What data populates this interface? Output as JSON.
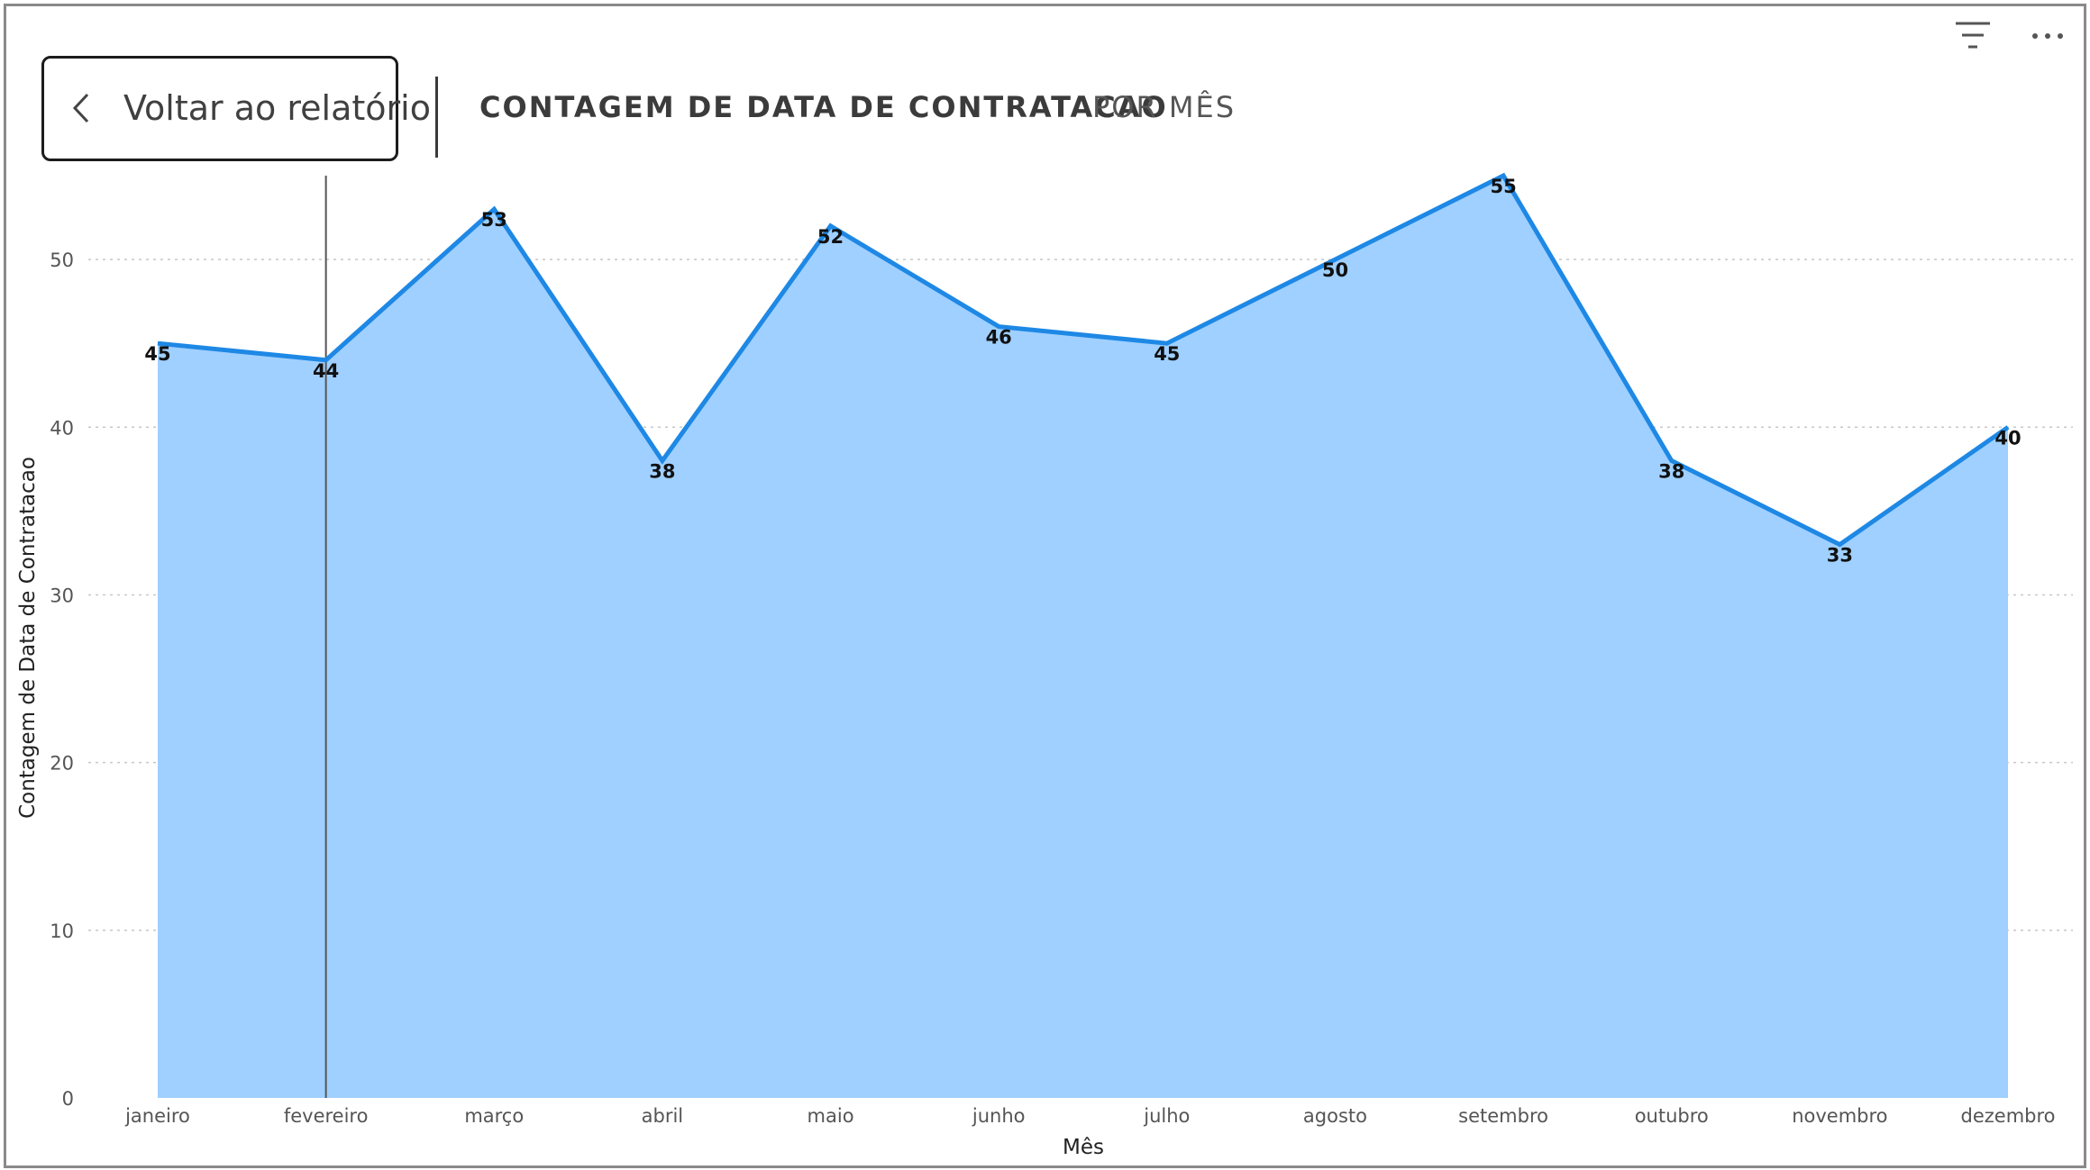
{
  "header": {
    "back_label": "Voltar ao relatório",
    "title_main": "CONTAGEM DE DATA DE CONTRATACAO",
    "title_sub": "POR MÊS"
  },
  "icons": {
    "back": "chevron-left-icon",
    "filter": "filter-icon",
    "more": "more-options-icon"
  },
  "colors": {
    "line": "#1E88E5",
    "area": "#A0D0FF",
    "crosshair": "#555555"
  },
  "chart_data": {
    "type": "area",
    "categories": [
      "janeiro",
      "fevereiro",
      "março",
      "abril",
      "maio",
      "junho",
      "julho",
      "agosto",
      "setembro",
      "outubro",
      "novembro",
      "dezembro"
    ],
    "values": [
      45,
      44,
      53,
      38,
      52,
      46,
      45,
      50,
      55,
      38,
      33,
      40
    ],
    "xlabel": "Mês",
    "ylabel": "Contagem de Data de Contratacao",
    "ylim": [
      0,
      55
    ],
    "yticks": [
      0,
      10,
      20,
      30,
      40,
      50
    ],
    "grid": true,
    "data_labels": true,
    "highlighted_category": "fevereiro"
  }
}
